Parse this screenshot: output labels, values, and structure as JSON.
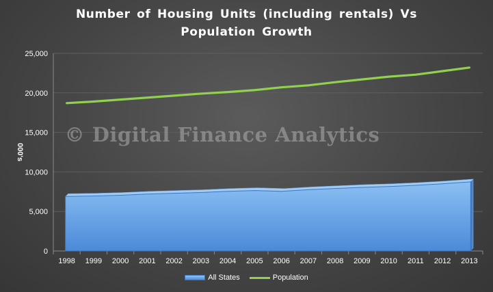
{
  "chart_data": {
    "type": "area",
    "title": [
      "Number of Housing Units (including rentals) Vs",
      "Population Growth"
    ],
    "ylabel": "000's",
    "xlabel": "",
    "categories": [
      "1998",
      "1999",
      "2000",
      "2001",
      "2002",
      "2003",
      "2004",
      "2005",
      "2006",
      "2007",
      "2008",
      "2009",
      "2010",
      "2011",
      "2012",
      "2013"
    ],
    "ylim": [
      0,
      25000
    ],
    "yticks": [
      0,
      5000,
      10000,
      15000,
      20000,
      25000
    ],
    "ytick_labels": [
      "0",
      "5,000",
      "10,000",
      "15,000",
      "20,000",
      "25,000"
    ],
    "grid": true,
    "legend_position": "bottom",
    "series": [
      {
        "name": "All States",
        "type": "area",
        "color": "#6fa8ec",
        "values": [
          6900,
          6950,
          7050,
          7200,
          7300,
          7400,
          7550,
          7650,
          7550,
          7750,
          7900,
          8050,
          8150,
          8300,
          8500,
          8750
        ]
      },
      {
        "name": "Population",
        "type": "line",
        "color": "#92d050",
        "values": [
          18700,
          18900,
          19150,
          19400,
          19650,
          19900,
          20100,
          20350,
          20700,
          20950,
          21350,
          21700,
          22050,
          22300,
          22750,
          23200
        ]
      }
    ]
  },
  "watermark": "© Digital Finance Analytics"
}
